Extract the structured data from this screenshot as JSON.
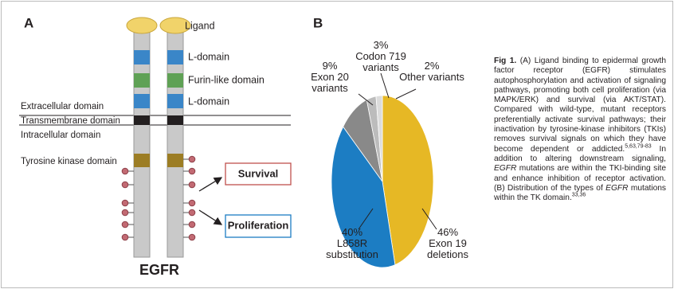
{
  "panel_a": {
    "label": "A",
    "ligand": "Ligand",
    "l_domain_top": "L-domain",
    "furin_domain": "Furin-like domain",
    "l_domain_bottom": "L-domain",
    "extracellular": "Extracellular domain",
    "transmembrane": "Transmembrane domain",
    "intracellular": "Intracellular domain",
    "tyrosine_kinase": "Tyrosine kinase domain",
    "survival": "Survival",
    "proliferation": "Proliferation",
    "receptor": "EGFR"
  },
  "chart_data": {
    "type": "pie",
    "panel_label": "B",
    "categories": [
      "Exon 19 deletions",
      "L858R substitution",
      "Exon 20 variants",
      "Codon 719 variants",
      "Other variants"
    ],
    "values": [
      46,
      40,
      9,
      3,
      2
    ],
    "value_labels": [
      "46%",
      "40%",
      "9%",
      "3%",
      "2%"
    ],
    "colors": [
      "#e6b825",
      "#1c7dc3",
      "#898989",
      "#bcbcbc",
      "#dcdcdc"
    ]
  },
  "caption": {
    "label": "Fig 1.",
    "segments": [
      {
        "text": " (A) Ligand binding to epidermal growth factor receptor (EGFR) stimulates autophosphorylation and activation of signaling pathways, promoting both cell proliferation (via MAPK/ERK) and survival (via AKT/STAT). Compared with wild-type, mutant receptors preferentially activate survival pathways; their inactivation by tyrosine-kinase inhibitors (TKIs) removes survival signals on which they have become dependent or addicted."
      },
      {
        "text": "5,63,79-83",
        "format": "sup"
      },
      {
        "text": " In addition to altering downstream signaling, "
      },
      {
        "text": "EGFR",
        "format": "italic"
      },
      {
        "text": " mutations are within the TKI-binding site and enhance inhibition of receptor activation. (B) Distribution of the types of "
      },
      {
        "text": "EGFR",
        "format": "italic"
      },
      {
        "text": " mutations within the TK domain."
      },
      {
        "text": "33,36",
        "format": "sup"
      }
    ]
  }
}
